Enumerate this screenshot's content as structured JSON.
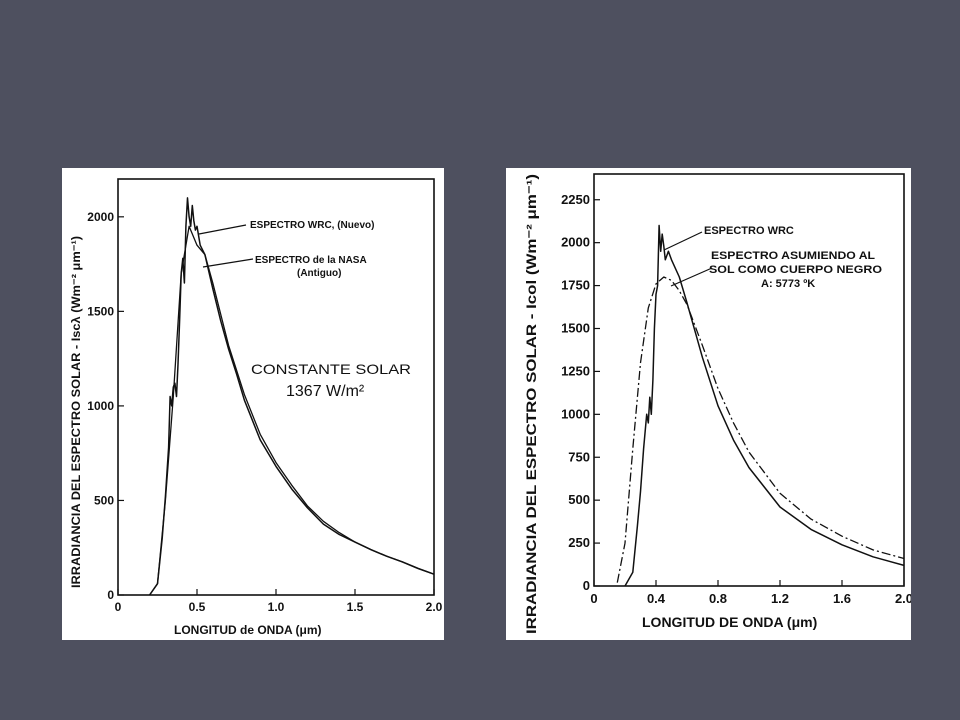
{
  "colors": {
    "slide_bg": "#4e505f",
    "panel_bg": "#ffffff",
    "ink": "#111111"
  },
  "chart_data": [
    {
      "type": "line",
      "xlabel": "LONGITUD de ONDA (μm)",
      "ylabel": "IRRADIANCIA DEL ESPECTRO SOLAR - Iscλ (Wm⁻² μm⁻¹)",
      "xlim": [
        0,
        2.0
      ],
      "ylim": [
        0,
        2200
      ],
      "x_ticks": [
        0,
        0.5,
        1.0,
        1.5,
        2.0
      ],
      "x_tick_labels": [
        "0",
        "0.5",
        "1.0",
        "1.5",
        "2.0"
      ],
      "y_ticks": [
        0,
        500,
        1000,
        1500,
        2000
      ],
      "y_tick_labels": [
        "0",
        "500",
        "1000",
        "1500",
        "2000"
      ],
      "grid": false,
      "annotations": [
        {
          "text": "ESPECTRO WRC, (Nuevo)"
        },
        {
          "text": "ESPECTRO de la NASA"
        },
        {
          "text": "(Antiguo)"
        }
      ],
      "constant_label": "CONSTANTE SOLAR",
      "constant_value": "1367 W/m²",
      "series": [
        {
          "name": "ESPECTRO WRC, (Nuevo)",
          "x": [
            0.2,
            0.25,
            0.28,
            0.3,
            0.32,
            0.33,
            0.34,
            0.35,
            0.36,
            0.37,
            0.38,
            0.39,
            0.4,
            0.41,
            0.42,
            0.43,
            0.44,
            0.45,
            0.46,
            0.47,
            0.48,
            0.49,
            0.5,
            0.52,
            0.55,
            0.6,
            0.65,
            0.7,
            0.75,
            0.8,
            0.9,
            1.0,
            1.1,
            1.2,
            1.3,
            1.4,
            1.5,
            1.6,
            1.7,
            1.8,
            1.9,
            2.0
          ],
          "y": [
            0,
            60,
            300,
            520,
            780,
            1050,
            1000,
            1100,
            1120,
            1050,
            1220,
            1450,
            1700,
            1780,
            1650,
            1950,
            2100,
            2000,
            1950,
            2060,
            1980,
            1930,
            1950,
            1850,
            1800,
            1620,
            1450,
            1300,
            1170,
            1030,
            820,
            680,
            560,
            460,
            375,
            320,
            280,
            240,
            205,
            175,
            140,
            110
          ]
        },
        {
          "name": "ESPECTRO de la NASA (Antiguo)",
          "x": [
            0.2,
            0.25,
            0.3,
            0.35,
            0.4,
            0.45,
            0.5,
            0.55,
            0.6,
            0.7,
            0.8,
            0.9,
            1.0,
            1.1,
            1.2,
            1.3,
            1.4,
            1.5,
            1.6,
            1.7,
            1.8,
            1.9,
            2.0
          ],
          "y": [
            0,
            60,
            500,
            1050,
            1700,
            1950,
            1850,
            1800,
            1650,
            1320,
            1060,
            850,
            700,
            580,
            470,
            390,
            330,
            280,
            240,
            205,
            175,
            140,
            110
          ]
        }
      ]
    },
    {
      "type": "line",
      "xlabel": "LONGITUD DE ONDA (μm)",
      "ylabel": "IRRADIANCIA DEL ESPECTRO SOLAR - Icol (Wm⁻² μm⁻¹)",
      "xlim": [
        0,
        2.0
      ],
      "ylim": [
        0,
        2400
      ],
      "x_ticks": [
        0,
        0.4,
        0.8,
        1.2,
        1.6,
        2.0
      ],
      "x_tick_labels": [
        "0",
        "0.4",
        "0.8",
        "1.2",
        "1.6",
        "2.0"
      ],
      "y_ticks": [
        0,
        250,
        500,
        750,
        1000,
        1250,
        1500,
        1750,
        2000,
        2250
      ],
      "y_tick_labels": [
        "0",
        "250",
        "500",
        "750",
        "1000",
        "1250",
        "1500",
        "1750",
        "2000",
        "2250"
      ],
      "grid": false,
      "annotations": [
        {
          "text": "ESPECTRO WRC"
        },
        {
          "text": "ESPECTRO ASUMIENDO AL"
        },
        {
          "text": "SOL COMO CUERPO NEGRO"
        },
        {
          "text": "A: 5773 ºK"
        }
      ],
      "series": [
        {
          "name": "ESPECTRO WRC",
          "x": [
            0.2,
            0.25,
            0.28,
            0.3,
            0.32,
            0.34,
            0.35,
            0.36,
            0.37,
            0.38,
            0.39,
            0.4,
            0.41,
            0.42,
            0.43,
            0.44,
            0.45,
            0.46,
            0.48,
            0.5,
            0.55,
            0.6,
            0.7,
            0.8,
            0.9,
            1.0,
            1.2,
            1.4,
            1.6,
            1.8,
            2.0
          ],
          "y": [
            0,
            80,
            350,
            550,
            800,
            1000,
            950,
            1100,
            1000,
            1200,
            1500,
            1700,
            1750,
            2100,
            1950,
            2050,
            1980,
            1900,
            1950,
            1900,
            1800,
            1650,
            1330,
            1050,
            850,
            690,
            460,
            330,
            240,
            170,
            120
          ]
        },
        {
          "name": "ESPECTRO ASUMIENDO AL SOL COMO CUERPO NEGRO A: 5773 ºK",
          "x": [
            0.15,
            0.2,
            0.25,
            0.3,
            0.35,
            0.4,
            0.45,
            0.5,
            0.55,
            0.6,
            0.7,
            0.8,
            0.9,
            1.0,
            1.2,
            1.4,
            1.6,
            1.8,
            2.0
          ],
          "y": [
            20,
            250,
            800,
            1300,
            1620,
            1760,
            1800,
            1780,
            1720,
            1640,
            1400,
            1150,
            950,
            780,
            540,
            390,
            290,
            210,
            160
          ]
        }
      ]
    }
  ]
}
